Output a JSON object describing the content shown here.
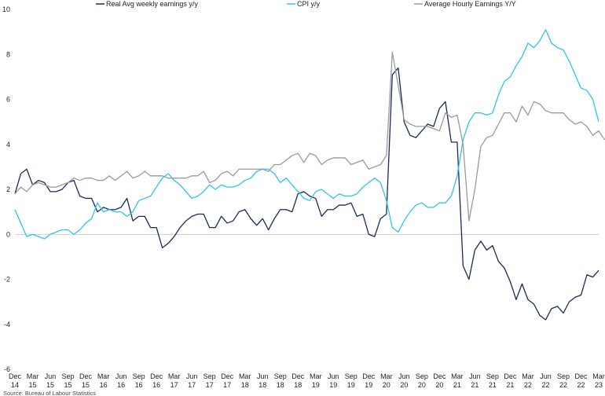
{
  "chart_data": {
    "type": "line",
    "title": "",
    "xlabel": "",
    "ylabel": "",
    "ylim": [
      -6,
      10
    ],
    "yticks": [
      "-6",
      "-4",
      "-2",
      "0",
      "2",
      "4",
      "6",
      "8",
      "10"
    ],
    "grid": false,
    "legend_position": "top",
    "source": "Source: Bureau of Labour Statistics",
    "x_tick_labels": [
      {
        "m": "Dec",
        "y": "14"
      },
      {
        "m": "Mar",
        "y": "15"
      },
      {
        "m": "Jun",
        "y": "15"
      },
      {
        "m": "Sep",
        "y": "15"
      },
      {
        "m": "Dec",
        "y": "15"
      },
      {
        "m": "Mar",
        "y": "16"
      },
      {
        "m": "Jun",
        "y": "16"
      },
      {
        "m": "Sep",
        "y": "16"
      },
      {
        "m": "Dec",
        "y": "16"
      },
      {
        "m": "Mar",
        "y": "17"
      },
      {
        "m": "Jun",
        "y": "17"
      },
      {
        "m": "Sep",
        "y": "17"
      },
      {
        "m": "Dec",
        "y": "17"
      },
      {
        "m": "Mar",
        "y": "18"
      },
      {
        "m": "Jun",
        "y": "18"
      },
      {
        "m": "Sep",
        "y": "18"
      },
      {
        "m": "Dec",
        "y": "18"
      },
      {
        "m": "Mar",
        "y": "19"
      },
      {
        "m": "Jun",
        "y": "19"
      },
      {
        "m": "Sep",
        "y": "19"
      },
      {
        "m": "Dec",
        "y": "19"
      },
      {
        "m": "Mar",
        "y": "20"
      },
      {
        "m": "Jun",
        "y": "20"
      },
      {
        "m": "Sep",
        "y": "20"
      },
      {
        "m": "Dec",
        "y": "20"
      },
      {
        "m": "Mar",
        "y": "21"
      },
      {
        "m": "Jun",
        "y": "21"
      },
      {
        "m": "Sep",
        "y": "21"
      },
      {
        "m": "Dec",
        "y": "21"
      },
      {
        "m": "Mar",
        "y": "22"
      },
      {
        "m": "Jun",
        "y": "22"
      },
      {
        "m": "Sep",
        "y": "22"
      },
      {
        "m": "Dec",
        "y": "22"
      },
      {
        "m": "Mar",
        "y": "23"
      }
    ],
    "series": [
      {
        "name": "Real Avg weekly earnings y/y",
        "color": "#1b2a5c",
        "values": [
          1.8,
          2.7,
          2.9,
          2.2,
          2.4,
          2.3,
          1.9,
          1.9,
          2.0,
          2.3,
          2.4,
          1.7,
          1.6,
          1.6,
          1.0,
          1.2,
          1.1,
          1.1,
          1.2,
          1.6,
          0.6,
          0.8,
          0.8,
          0.3,
          0.3,
          -0.6,
          -0.4,
          -0.1,
          0.3,
          0.6,
          0.8,
          0.9,
          0.9,
          0.3,
          0.3,
          0.8,
          0.5,
          0.6,
          1.0,
          1.1,
          0.7,
          0.4,
          0.7,
          0.2,
          0.7,
          1.1,
          1.1,
          1.0,
          1.8,
          1.9,
          1.7,
          1.6,
          0.8,
          1.1,
          1.1,
          1.3,
          1.3,
          1.4,
          0.8,
          0.9,
          0.0,
          -0.1,
          0.7,
          0.9,
          7.1,
          7.4,
          5.0,
          4.4,
          4.3,
          4.6,
          4.9,
          4.8,
          5.6,
          5.9,
          4.1,
          4.1,
          -1.4,
          -2.0,
          -0.7,
          -0.3,
          -0.7,
          -0.5,
          -1.2,
          -1.5,
          -2.1,
          -2.9,
          -2.2,
          -2.9,
          -3.1,
          -3.6,
          -3.8,
          -3.3,
          -3.2,
          -3.5,
          -3.0,
          -2.8,
          -2.7,
          -1.8,
          -1.9,
          -1.6
        ]
      },
      {
        "name": "CPI y/y",
        "color": "#2ec4ec",
        "values": [
          1.1,
          0.5,
          -0.1,
          0.0,
          -0.1,
          -0.2,
          0.0,
          0.1,
          0.2,
          0.2,
          0.0,
          0.2,
          0.5,
          0.7,
          1.4,
          1.0,
          1.1,
          1.0,
          1.0,
          0.8,
          1.0,
          1.5,
          1.6,
          1.7,
          2.1,
          2.5,
          2.7,
          2.4,
          2.2,
          1.9,
          1.6,
          1.7,
          1.9,
          2.2,
          2.0,
          2.2,
          2.1,
          2.1,
          2.2,
          2.4,
          2.5,
          2.8,
          2.9,
          2.9,
          2.7,
          2.3,
          2.5,
          2.2,
          1.9,
          1.6,
          1.5,
          1.9,
          2.0,
          1.8,
          1.6,
          1.8,
          1.7,
          1.7,
          1.8,
          2.1,
          2.3,
          2.5,
          2.3,
          1.5,
          0.3,
          0.1,
          0.6,
          1.0,
          1.3,
          1.4,
          1.2,
          1.2,
          1.4,
          1.4,
          1.7,
          2.6,
          4.2,
          5.0,
          5.4,
          5.4,
          5.3,
          5.4,
          6.2,
          6.8,
          7.0,
          7.5,
          7.9,
          8.5,
          8.3,
          8.6,
          9.1,
          8.5,
          8.3,
          8.2,
          7.7,
          7.1,
          6.5,
          6.4,
          6.0,
          5.0
        ]
      },
      {
        "name": "Average Hourly Earnings Y/Y",
        "color": "#9a9a9a",
        "values": [
          1.8,
          2.1,
          1.9,
          2.2,
          2.3,
          2.2,
          2.1,
          2.1,
          2.2,
          2.3,
          2.5,
          2.4,
          2.5,
          2.5,
          2.4,
          2.4,
          2.6,
          2.4,
          2.6,
          2.8,
          2.5,
          2.6,
          2.8,
          2.6,
          2.6,
          2.6,
          2.5,
          2.5,
          2.5,
          2.5,
          2.6,
          2.6,
          2.8,
          2.3,
          2.4,
          2.7,
          2.8,
          2.6,
          2.9,
          2.9,
          2.9,
          2.9,
          2.9,
          2.8,
          3.1,
          3.1,
          3.3,
          3.5,
          3.6,
          3.2,
          3.6,
          3.5,
          3.1,
          3.3,
          3.4,
          3.4,
          3.4,
          3.1,
          3.2,
          3.3,
          2.9,
          3.0,
          3.1,
          3.5,
          8.1,
          6.6,
          5.1,
          4.9,
          4.8,
          4.8,
          4.8,
          4.7,
          4.6,
          5.4,
          5.2,
          5.3,
          4.0,
          0.6,
          2.0,
          3.9,
          4.3,
          4.4,
          4.9,
          5.4,
          5.4,
          5.0,
          5.7,
          5.3,
          5.9,
          5.8,
          5.5,
          5.4,
          5.4,
          5.4,
          5.1,
          4.9,
          5.0,
          4.8,
          4.4,
          4.6,
          4.2
        ]
      }
    ]
  }
}
